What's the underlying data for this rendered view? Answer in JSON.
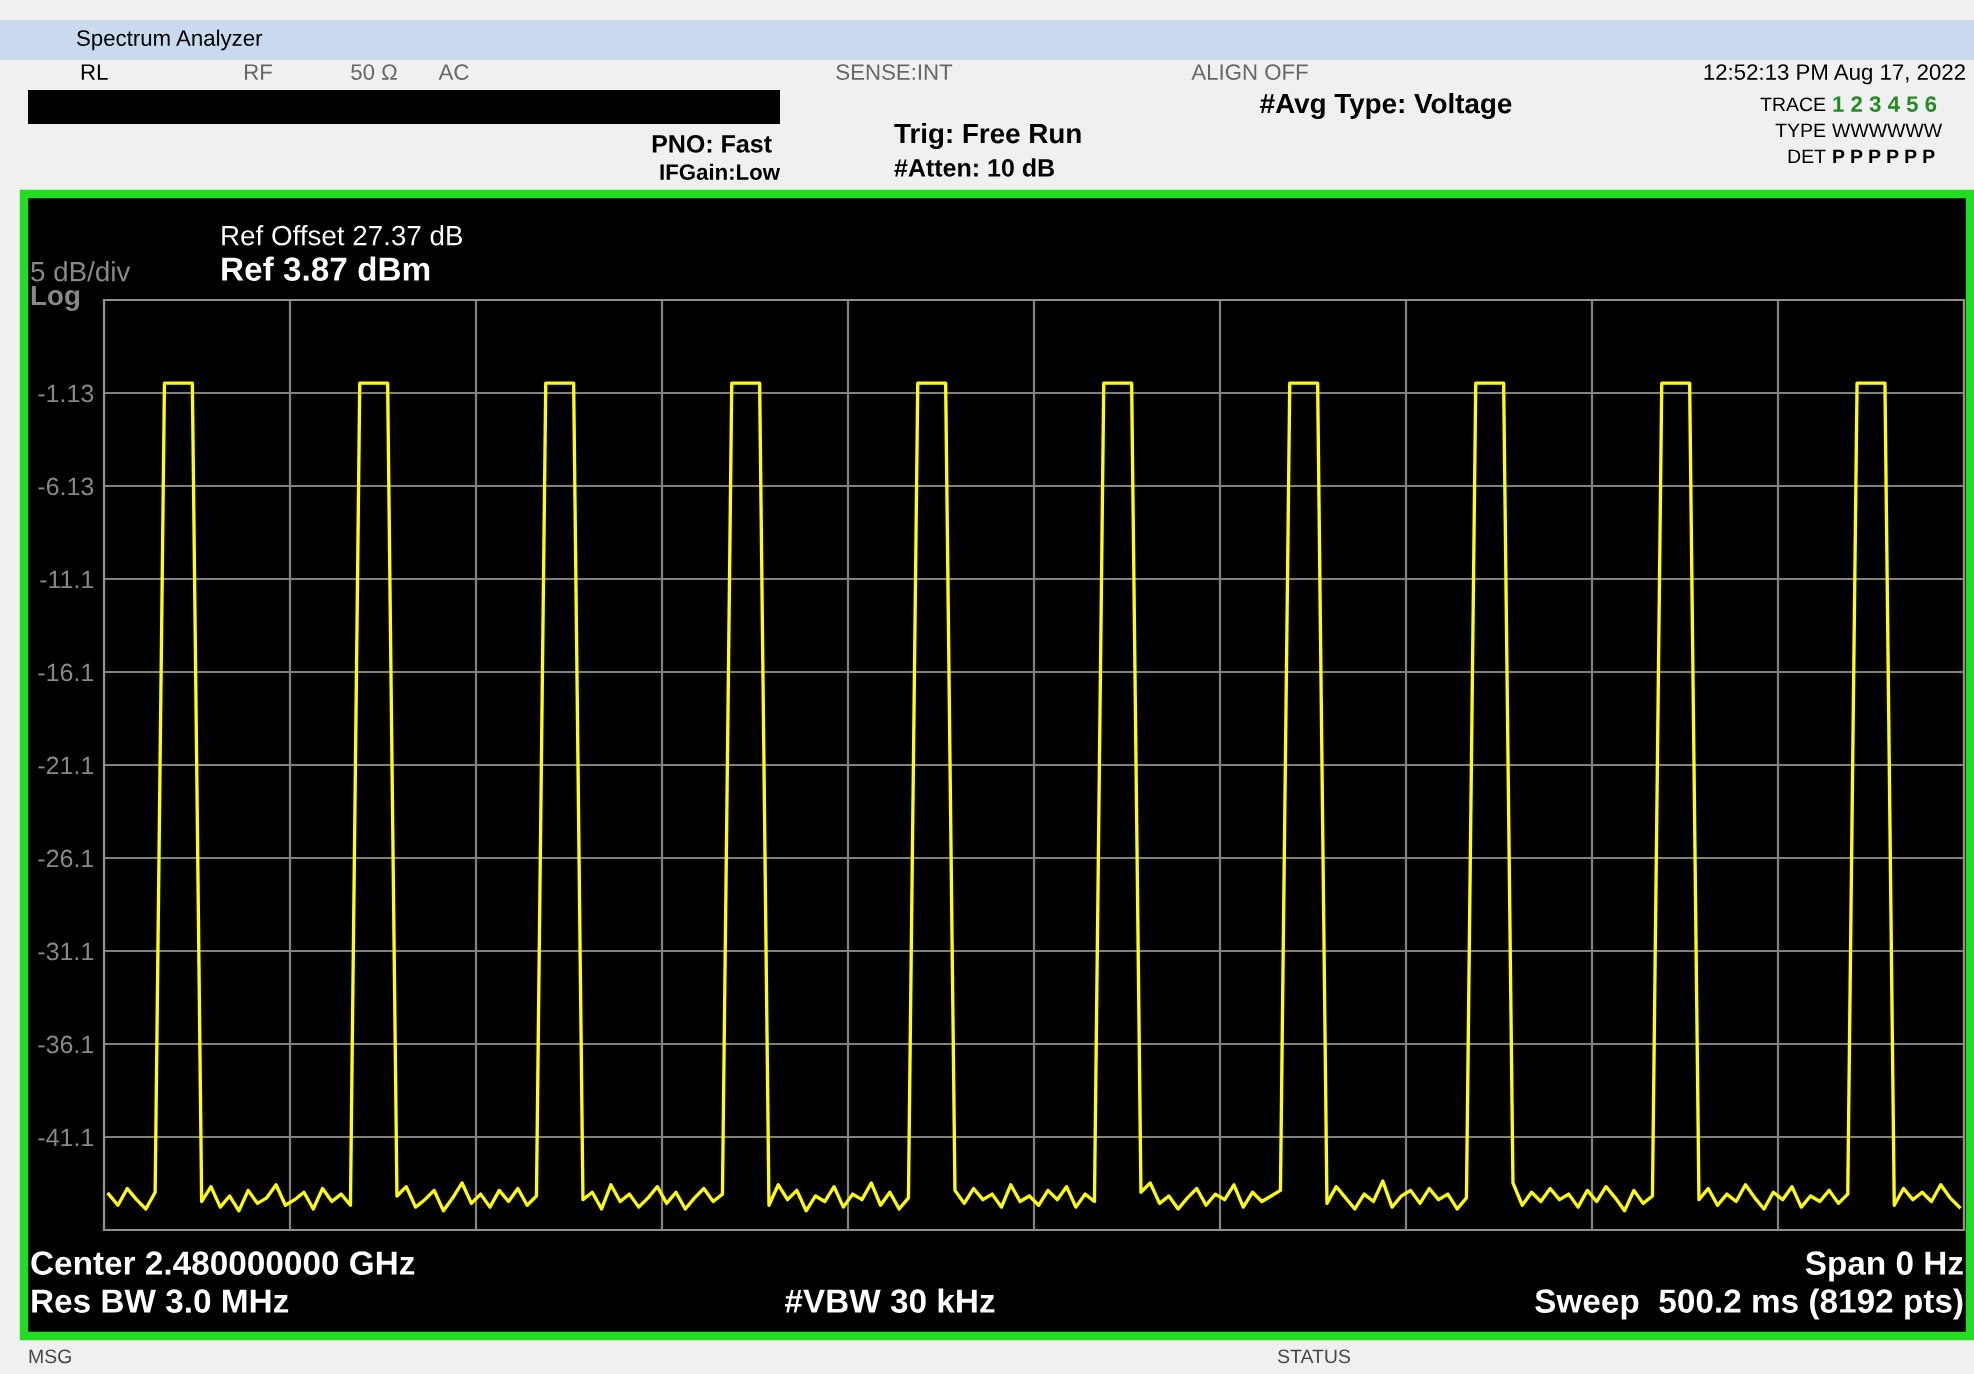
{
  "chart_data": {
    "type": "line",
    "title": "Spectrum Analyzer",
    "categories": [
      null,
      null,
      null,
      null,
      null,
      null,
      null,
      null,
      null,
      null,
      null,
      null,
      null,
      null,
      null,
      null,
      null,
      null,
      null,
      null,
      null,
      null,
      null,
      null,
      null,
      null,
      null,
      null,
      null,
      null,
      null,
      null,
      null,
      null,
      null,
      null,
      null,
      null,
      null,
      null,
      null,
      null,
      null,
      null,
      null,
      null,
      null,
      null,
      null,
      null,
      null,
      null,
      null,
      null,
      null,
      null,
      null,
      null,
      null,
      null,
      null,
      null,
      null,
      null,
      null,
      null,
      null,
      null,
      null,
      null,
      null,
      null,
      null,
      null,
      null,
      null,
      null,
      null,
      null,
      null,
      null,
      null,
      null,
      null,
      null,
      null,
      null,
      null,
      null,
      null,
      null,
      null,
      null,
      null,
      null,
      null,
      null,
      null,
      null,
      null,
      null,
      null,
      null,
      null,
      null,
      null,
      null,
      null,
      null,
      null,
      null,
      null,
      null,
      null,
      null,
      null,
      null,
      null,
      null,
      null,
      null,
      null,
      null,
      null,
      null,
      null,
      null,
      null,
      null,
      null,
      null,
      null,
      null,
      null,
      null,
      null,
      null,
      null,
      null,
      null,
      null,
      null,
      null,
      null,
      null,
      null,
      null,
      null,
      null,
      null,
      null,
      null,
      null,
      null,
      null,
      null,
      null,
      null,
      null,
      null,
      null,
      null,
      null,
      null,
      null,
      null,
      null,
      null,
      null,
      null,
      null,
      null,
      null,
      null,
      null,
      null,
      null,
      null,
      null,
      null,
      null,
      null,
      null,
      null,
      null,
      null,
      null,
      null,
      null,
      null,
      null,
      null,
      null,
      null,
      null,
      null,
      null,
      null,
      null,
      null
    ],
    "series": [
      {
        "color": "#ffff00",
        "values": [
          -44.2,
          -44.8,
          -43.9,
          -44.5,
          -45.0,
          -44.1,
          -0.6,
          -0.6,
          -0.6,
          -0.6,
          -44.6,
          -43.8,
          -44.9,
          -44.3,
          -45.1,
          -44.0,
          -44.7,
          -44.4,
          -43.7,
          -44.8,
          -44.5,
          -44.1,
          -45.0,
          -43.9,
          -44.6,
          -44.2,
          -44.8,
          -0.6,
          -0.6,
          -0.6,
          -0.6,
          -44.3,
          -43.8,
          -44.9,
          -44.5,
          -44.0,
          -45.1,
          -44.4,
          -43.6,
          -44.7,
          -44.2,
          -44.9,
          -44.0,
          -44.6,
          -43.9,
          -44.8,
          -44.3,
          -0.6,
          -0.6,
          -0.6,
          -0.6,
          -44.5,
          -44.1,
          -45.0,
          -43.7,
          -44.6,
          -44.2,
          -44.9,
          -44.4,
          -43.8,
          -44.7,
          -44.1,
          -45.0,
          -44.4,
          -43.9,
          -44.6,
          -44.2,
          -0.6,
          -0.6,
          -0.6,
          -0.6,
          -44.8,
          -43.7,
          -44.5,
          -44.0,
          -45.1,
          -44.3,
          -44.6,
          -43.8,
          -44.9,
          -44.2,
          -44.5,
          -43.6,
          -44.8,
          -44.1,
          -45.0,
          -44.4,
          -0.6,
          -0.6,
          -0.6,
          -0.6,
          -44.0,
          -44.7,
          -43.9,
          -44.5,
          -44.2,
          -44.9,
          -43.7,
          -44.6,
          -44.3,
          -44.8,
          -44.0,
          -44.5,
          -43.8,
          -44.9,
          -44.2,
          -44.6,
          -0.6,
          -0.6,
          -0.6,
          -0.6,
          -44.1,
          -43.6,
          -44.7,
          -44.3,
          -45.0,
          -44.4,
          -43.9,
          -44.8,
          -44.2,
          -44.5,
          -43.7,
          -44.9,
          -44.1,
          -44.6,
          -44.3,
          -44.0,
          -0.6,
          -0.6,
          -0.6,
          -0.6,
          -44.7,
          -43.8,
          -44.4,
          -45.0,
          -44.2,
          -44.6,
          -43.5,
          -44.9,
          -44.3,
          -44.0,
          -44.7,
          -43.9,
          -44.5,
          -44.2,
          -45.0,
          -44.4,
          -0.6,
          -0.6,
          -0.6,
          -0.6,
          -43.6,
          -44.8,
          -44.1,
          -44.6,
          -43.9,
          -44.5,
          -44.2,
          -44.9,
          -44.0,
          -44.6,
          -43.8,
          -44.4,
          -45.1,
          -44.0,
          -44.7,
          -44.3,
          -0.6,
          -0.6,
          -0.6,
          -0.6,
          -44.5,
          -43.9,
          -44.8,
          -44.2,
          -44.6,
          -43.7,
          -44.4,
          -45.0,
          -44.1,
          -44.5,
          -43.8,
          -44.9,
          -44.3,
          -44.6,
          -44.0,
          -44.7,
          -44.2,
          -0.6,
          -0.6,
          -0.6,
          -0.6,
          -44.8,
          -43.9,
          -44.5,
          -44.1,
          -44.6,
          -43.7,
          -44.4,
          -44.9
        ]
      }
    ],
    "ylim": [
      -46.13,
      3.87
    ],
    "yticks": [
      -1.13,
      -6.13,
      {
        "value": -11.13,
        "label": "-11.1"
      },
      {
        "value": -16.13,
        "label": "-16.1"
      },
      {
        "value": -21.13,
        "label": "-21.1"
      },
      {
        "value": -26.13,
        "label": "-26.1"
      },
      {
        "value": -31.13,
        "label": "-31.1"
      },
      {
        "value": -36.13,
        "label": "-36.1"
      },
      {
        "value": -41.13,
        "label": "-41.1"
      }
    ],
    "tick_labels": "y",
    "grid": true,
    "legend": false,
    "annotations": [
      "RL",
      "RF",
      "50 Ω",
      "AC",
      "SENSE:INT",
      "ALIGN OFF",
      "12:52:13 PM Aug 17, 2022",
      "#Avg Type: Voltage",
      "PNO: Fast",
      "IFGain:Low",
      "Trig: Free Run",
      "#Atten: 10 dB",
      "TRACE",
      "1 2 3 4 5 6",
      "TYPE",
      "WWWWWW",
      "DET",
      "P P P P P P",
      "Ref Offset 27.37 dB",
      "Ref 3.87 dBm",
      "5 dB/div",
      "Log",
      "Center 2.480000000 GHz",
      "Res BW 3.0 MHz",
      "#VBW 30 kHz",
      "Span 0 Hz",
      "Sweep  500.2 ms (8192 pts)",
      "MSG",
      "STATUS"
    ]
  }
}
